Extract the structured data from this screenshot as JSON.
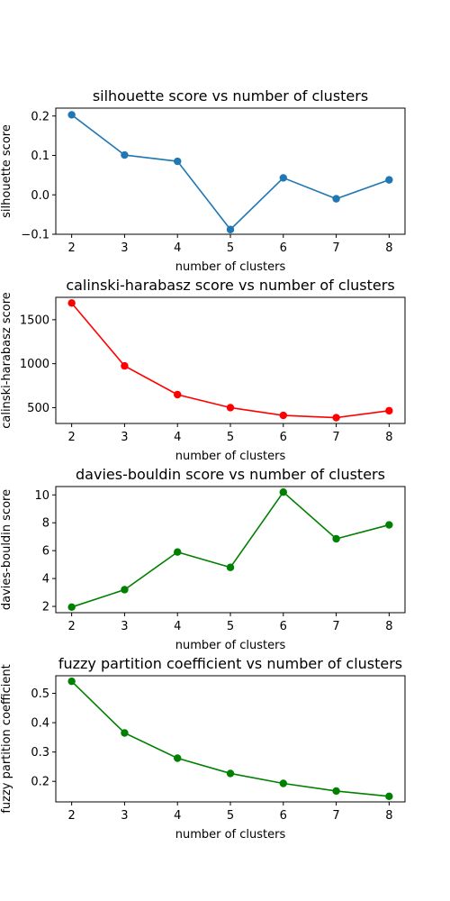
{
  "colors": {
    "blue": "#1f77b4",
    "red": "#ff0000",
    "green": "#008000"
  },
  "chart_data": [
    {
      "type": "line",
      "title": "silhouette score vs number of clusters",
      "xlabel": "number of clusters",
      "ylabel": "silhouette score",
      "x": [
        2,
        3,
        4,
        5,
        6,
        7,
        8
      ],
      "series": [
        {
          "values": [
            0.203,
            0.101,
            0.085,
            -0.088,
            0.043,
            -0.01,
            0.038
          ]
        }
      ],
      "color": "#1f77b4",
      "xlim": [
        1.7,
        8.3
      ],
      "ylim": [
        -0.1,
        0.22
      ],
      "xticks": [
        "2",
        "3",
        "4",
        "5",
        "6",
        "7",
        "8"
      ],
      "yticks": [
        -0.1,
        0.0,
        0.1,
        0.2
      ],
      "yticklabels": [
        "−0.1",
        "0.0",
        "0.1",
        "0.2"
      ],
      "grid": false
    },
    {
      "type": "line",
      "title": "calinski-harabasz score vs number of clusters",
      "xlabel": "number of clusters",
      "ylabel": "calinski-harabasz score",
      "x": [
        2,
        3,
        4,
        5,
        6,
        7,
        8
      ],
      "series": [
        {
          "values": [
            1690,
            975,
            648,
            500,
            412,
            386,
            465
          ]
        }
      ],
      "color": "#ff0000",
      "xlim": [
        1.7,
        8.3
      ],
      "ylim": [
        320,
        1755
      ],
      "xticks": [
        "2",
        "3",
        "4",
        "5",
        "6",
        "7",
        "8"
      ],
      "yticks": [
        500,
        1000,
        1500
      ],
      "yticklabels": [
        "500",
        "1000",
        "1500"
      ],
      "grid": false
    },
    {
      "type": "line",
      "title": "davies-bouldin score vs number of clusters",
      "xlabel": "number of clusters",
      "ylabel": "davies-bouldin score",
      "x": [
        2,
        3,
        4,
        5,
        6,
        7,
        8
      ],
      "series": [
        {
          "values": [
            1.95,
            3.2,
            5.9,
            4.8,
            10.2,
            6.85,
            7.85
          ]
        }
      ],
      "color": "#008000",
      "xlim": [
        1.7,
        8.3
      ],
      "ylim": [
        1.55,
        10.6
      ],
      "xticks": [
        "2",
        "3",
        "4",
        "5",
        "6",
        "7",
        "8"
      ],
      "yticks": [
        2,
        4,
        6,
        8,
        10
      ],
      "yticklabels": [
        "2",
        "4",
        "6",
        "8",
        "10"
      ],
      "grid": false
    },
    {
      "type": "line",
      "title": "fuzzy partition coefficient vs number of clusters",
      "xlabel": "number of clusters",
      "ylabel": "fuzzy partition coefficient",
      "x": [
        2,
        3,
        4,
        5,
        6,
        7,
        8
      ],
      "series": [
        {
          "values": [
            0.541,
            0.365,
            0.279,
            0.227,
            0.193,
            0.167,
            0.149
          ]
        }
      ],
      "color": "#008000",
      "xlim": [
        1.7,
        8.3
      ],
      "ylim": [
        0.13,
        0.56
      ],
      "xticks": [
        "2",
        "3",
        "4",
        "5",
        "6",
        "7",
        "8"
      ],
      "yticks": [
        0.2,
        0.3,
        0.4,
        0.5
      ],
      "yticklabels": [
        "0.2",
        "0.3",
        "0.4",
        "0.5"
      ],
      "grid": false
    }
  ]
}
